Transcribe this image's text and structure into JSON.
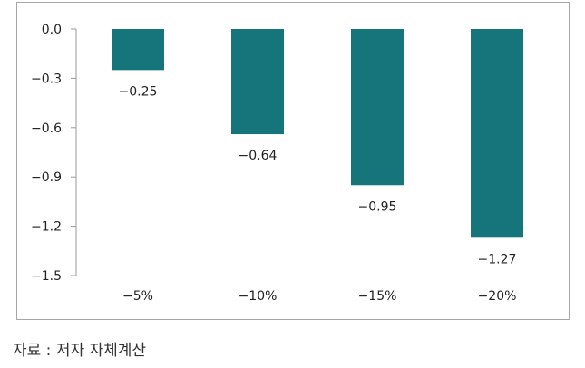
{
  "chart_data": {
    "type": "bar",
    "categories": [
      "−5%",
      "−10%",
      "−15%",
      "−20%"
    ],
    "values": [
      -0.25,
      -0.64,
      -0.95,
      -1.27
    ],
    "data_labels": [
      "−0.25",
      "−0.64",
      "−0.95",
      "−1.27"
    ],
    "yticks": [
      0.0,
      -0.3,
      -0.6,
      -0.9,
      -1.2,
      -1.5
    ],
    "ytick_labels": [
      "0.0",
      "−0.3",
      "−0.6",
      "−0.9",
      "−1.2",
      "−1.5"
    ],
    "ylim": [
      -1.5,
      0.0
    ],
    "grid": false,
    "legend": "none",
    "bar_color": "#15757a",
    "axis_color": "#9a9a9a",
    "title": "",
    "xlabel": "",
    "ylabel": ""
  },
  "source_note": "자료 : 저자 자체계산"
}
